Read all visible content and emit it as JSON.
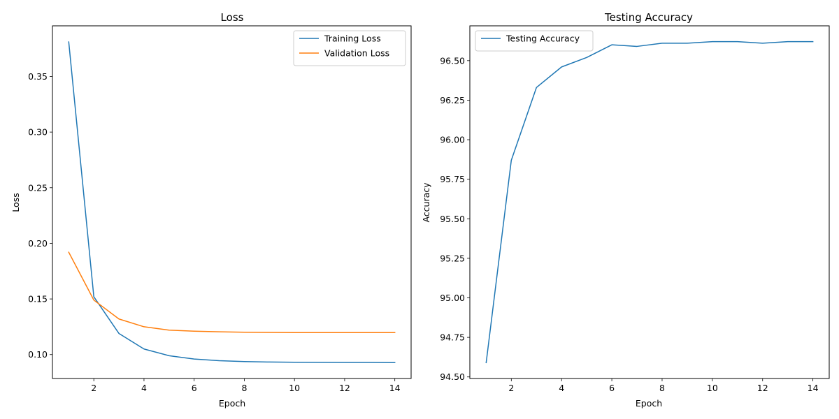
{
  "colors": {
    "series_blue": "#1f77b4",
    "series_orange": "#ff7f0e",
    "axis": "#000000",
    "legend_border": "#cccccc",
    "background": "#ffffff"
  },
  "chart_data": [
    {
      "type": "line",
      "title": "Loss",
      "xlabel": "Epoch",
      "ylabel": "Loss",
      "xlim": [
        0.35,
        14.65
      ],
      "ylim": [
        0.0785,
        0.3955
      ],
      "xticks": [
        2,
        4,
        6,
        8,
        10,
        12,
        14
      ],
      "xtick_labels": [
        "2",
        "4",
        "6",
        "8",
        "10",
        "12",
        "14"
      ],
      "yticks": [
        0.1,
        0.15,
        0.2,
        0.25,
        0.3,
        0.35
      ],
      "ytick_labels": [
        "0.10",
        "0.15",
        "0.20",
        "0.25",
        "0.30",
        "0.35"
      ],
      "grid": false,
      "legend_position": "upper right",
      "x": [
        1,
        2,
        3,
        4,
        5,
        6,
        7,
        8,
        9,
        10,
        11,
        12,
        13,
        14
      ],
      "series": [
        {
          "name": "Training Loss",
          "color": "#1f77b4",
          "values": [
            0.381,
            0.152,
            0.119,
            0.105,
            0.099,
            0.096,
            0.0945,
            0.0937,
            0.0933,
            0.0931,
            0.093,
            0.0929,
            0.0929,
            0.0928
          ]
        },
        {
          "name": "Validation Loss",
          "color": "#ff7f0e",
          "values": [
            0.192,
            0.149,
            0.132,
            0.125,
            0.122,
            0.121,
            0.1205,
            0.1201,
            0.1199,
            0.1198,
            0.1198,
            0.1198,
            0.1198,
            0.1198
          ]
        }
      ]
    },
    {
      "type": "line",
      "title": "Testing Accuracy",
      "xlabel": "Epoch",
      "ylabel": "Accuracy",
      "xlim": [
        0.35,
        14.65
      ],
      "ylim": [
        94.49,
        96.72
      ],
      "xticks": [
        2,
        4,
        6,
        8,
        10,
        12,
        14
      ],
      "xtick_labels": [
        "2",
        "4",
        "6",
        "8",
        "10",
        "12",
        "14"
      ],
      "yticks": [
        94.5,
        94.75,
        95.0,
        95.25,
        95.5,
        95.75,
        96.0,
        96.25,
        96.5
      ],
      "ytick_labels": [
        "94.50",
        "94.75",
        "95.00",
        "95.25",
        "95.50",
        "95.75",
        "96.00",
        "96.25",
        "96.50"
      ],
      "grid": false,
      "legend_position": "upper left",
      "x": [
        1,
        2,
        3,
        4,
        5,
        6,
        7,
        8,
        9,
        10,
        11,
        12,
        13,
        14
      ],
      "series": [
        {
          "name": "Testing Accuracy",
          "color": "#1f77b4",
          "values": [
            94.59,
            95.87,
            96.33,
            96.46,
            96.52,
            96.6,
            96.59,
            96.61,
            96.61,
            96.62,
            96.62,
            96.61,
            96.62,
            96.62
          ]
        }
      ]
    }
  ]
}
